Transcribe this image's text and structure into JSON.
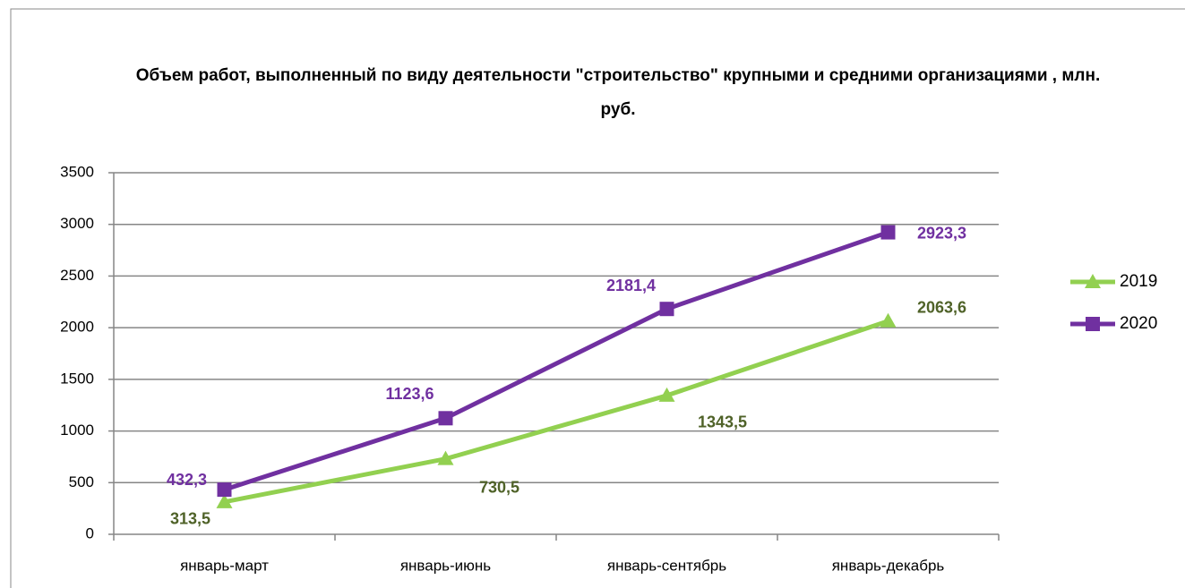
{
  "chart_data": {
    "type": "line",
    "title": "Объем работ, выполненный по виду деятельности \"строительство\" крупными и средними организациями , млн. руб.",
    "categories": [
      "январь-март",
      "январь-июнь",
      "январь-сентябрь",
      "январь-декабрь"
    ],
    "series": [
      {
        "name": "2019",
        "color": "#92d050",
        "label_color": "#4f6228",
        "marker": "triangle",
        "values": [
          313.5,
          730.5,
          1343.5,
          2063.6
        ],
        "value_labels": [
          "313,5",
          "730,5",
          "1343,5",
          "2063,6"
        ]
      },
      {
        "name": "2020",
        "color": "#7030a0",
        "label_color": "#7030a0",
        "marker": "square",
        "values": [
          432.3,
          1123.6,
          2181.4,
          2923.3
        ],
        "value_labels": [
          "432,3",
          "1123,6",
          "2181,4",
          "2923,3"
        ]
      }
    ],
    "ylim": [
      0,
      3500
    ],
    "yticks": [
      0,
      500,
      1000,
      1500,
      2000,
      2500,
      3000,
      3500
    ],
    "grid": true,
    "legend": "right"
  }
}
